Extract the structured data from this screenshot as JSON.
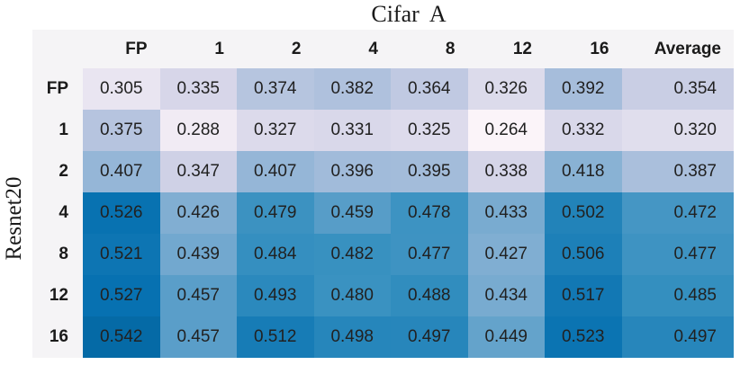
{
  "chart_data": {
    "type": "heatmap",
    "title": "Cifar A",
    "ylabel": "Resnet20",
    "columns": [
      "FP",
      "1",
      "2",
      "4",
      "8",
      "12",
      "16",
      "Average"
    ],
    "rows": [
      "FP",
      "1",
      "2",
      "4",
      "8",
      "12",
      "16"
    ],
    "values": [
      [
        0.305,
        0.335,
        0.374,
        0.382,
        0.364,
        0.326,
        0.392,
        0.354
      ],
      [
        0.375,
        0.288,
        0.327,
        0.331,
        0.325,
        0.264,
        0.332,
        0.32
      ],
      [
        0.407,
        0.347,
        0.407,
        0.396,
        0.395,
        0.338,
        0.418,
        0.387
      ],
      [
        0.526,
        0.426,
        0.479,
        0.459,
        0.478,
        0.433,
        0.502,
        0.472
      ],
      [
        0.521,
        0.439,
        0.484,
        0.482,
        0.477,
        0.427,
        0.506,
        0.477
      ],
      [
        0.527,
        0.457,
        0.493,
        0.48,
        0.488,
        0.434,
        0.517,
        0.485
      ],
      [
        0.542,
        0.457,
        0.512,
        0.498,
        0.497,
        0.449,
        0.523,
        0.497
      ]
    ],
    "value_decimals": 3,
    "colormap": {
      "name": "PuBu",
      "anchors": [
        "#fff7fb",
        "#ece7f2",
        "#d0d1e6",
        "#a6bddb",
        "#74a9cf",
        "#3690c0",
        "#0570b0",
        "#045a8d",
        "#023858"
      ],
      "vmin": 0.255,
      "vmax": 0.62
    },
    "colors": {
      "table_background": "#f5f4f6",
      "value_text": "#212121",
      "header_text": "#1a1a1a",
      "title_text": "#1a1a1a"
    },
    "legend": "none",
    "grid_lines": "off"
  }
}
